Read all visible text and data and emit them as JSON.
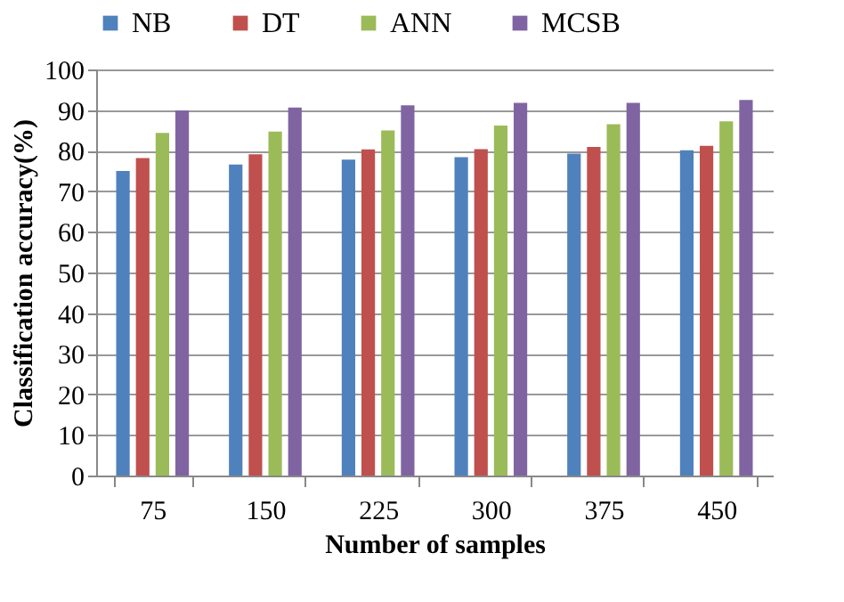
{
  "chart_data": {
    "type": "bar",
    "xlabel": "Number of samples",
    "ylabel": "Classification accuracy(%)",
    "categories": [
      "75",
      "150",
      "225",
      "300",
      "375",
      "450"
    ],
    "series": [
      {
        "name": "NB",
        "color": "#4f81bd",
        "values": [
          75.0,
          76.6,
          77.8,
          78.4,
          79.3,
          80.1
        ]
      },
      {
        "name": "DT",
        "color": "#c0504d",
        "values": [
          78.2,
          79.1,
          80.3,
          80.4,
          80.9,
          81.2
        ]
      },
      {
        "name": "ANN",
        "color": "#9bbb59",
        "values": [
          84.4,
          84.7,
          85.0,
          86.2,
          86.5,
          87.2
        ]
      },
      {
        "name": "MCSB",
        "color": "#8064a2",
        "values": [
          89.9,
          90.6,
          91.2,
          91.8,
          91.8,
          92.5
        ]
      }
    ],
    "ylim": [
      0,
      100
    ],
    "yticks": [
      0,
      10,
      20,
      30,
      40,
      50,
      60,
      70,
      80,
      90,
      100
    ],
    "grid": "y",
    "legend": "top"
  }
}
